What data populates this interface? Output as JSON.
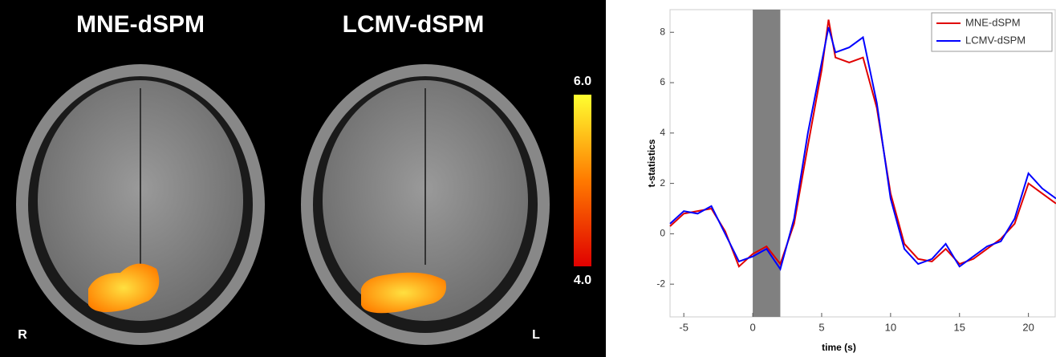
{
  "images": {
    "titles": [
      "MNE-dSPM",
      "LCMV-dSPM"
    ],
    "orientation_labels": [
      "R",
      "L"
    ],
    "colorbar": {
      "lim": [
        4,
        6
      ],
      "ticks": [
        {
          "value": 6,
          "label": "6.0"
        },
        {
          "value": 4,
          "label": "4.0"
        }
      ]
    }
  },
  "chart_data": {
    "type": "line",
    "x_label": "time (s)",
    "y_label": "t-statistics",
    "x": [
      -6,
      -5,
      -4,
      -3,
      -2,
      -1,
      0,
      1,
      2,
      3,
      4,
      5,
      5.5,
      6,
      7,
      8,
      9,
      10,
      11,
      12,
      13,
      14,
      15,
      16,
      17,
      18,
      19,
      20,
      21,
      22
    ],
    "series": [
      {
        "name": "MNE-dSPM",
        "color": "#e00000",
        "values": [
          0.3,
          0.8,
          0.9,
          1.0,
          0.1,
          -1.3,
          -0.8,
          -0.5,
          -1.2,
          0.4,
          3.5,
          6.5,
          8.5,
          7.0,
          6.8,
          7.0,
          5.0,
          1.6,
          -0.4,
          -1.0,
          -1.1,
          -0.6,
          -1.2,
          -1.0,
          -0.6,
          -0.2,
          0.4,
          2.0,
          1.6,
          1.2
        ]
      },
      {
        "name": "LCMV-dSPM",
        "color": "#0000ff",
        "values": [
          0.4,
          0.9,
          0.8,
          1.1,
          0.0,
          -1.1,
          -0.9,
          -0.6,
          -1.4,
          0.6,
          4.0,
          6.8,
          8.2,
          7.2,
          7.4,
          7.8,
          5.2,
          1.4,
          -0.6,
          -1.2,
          -1.0,
          -0.4,
          -1.3,
          -0.9,
          -0.5,
          -0.3,
          0.6,
          2.4,
          1.8,
          1.4
        ]
      }
    ],
    "span": [
      0,
      2
    ],
    "xlim": [
      -6,
      22
    ],
    "ylim": [
      -3.3,
      8.9
    ],
    "xticks": [
      -5,
      0,
      5,
      10,
      15,
      20
    ],
    "yticks": [
      -2,
      0,
      2,
      4,
      6,
      8
    ],
    "legend": "upper-right"
  }
}
